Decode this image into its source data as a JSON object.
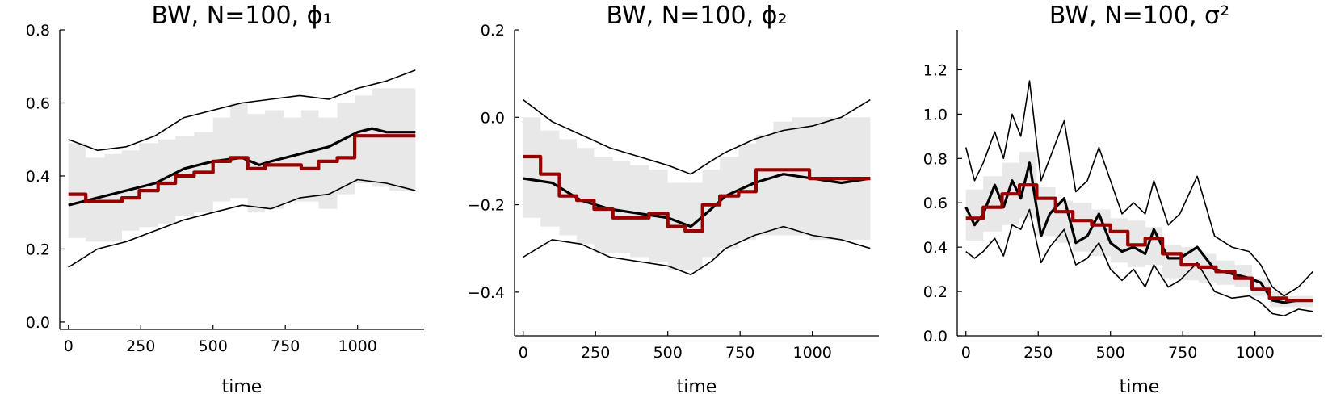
{
  "chart_data": [
    {
      "type": "line",
      "title": "BW, N=100, ϕ₁",
      "xlabel": "time",
      "ylabel": "",
      "xlim": [
        -30,
        1230
      ],
      "ylim": [
        -0.02,
        0.8
      ],
      "xticks": [
        0,
        250,
        500,
        750,
        1000
      ],
      "xtick_labels": [
        "0",
        "250",
        "500",
        "750",
        "1000"
      ],
      "yticks": [
        0.0,
        0.2,
        0.4,
        0.6,
        0.8
      ],
      "ytick_labels": [
        "0.0",
        "0.2",
        "0.4",
        "0.6",
        "0.8"
      ],
      "grid": false,
      "series": [
        {
          "role": "band",
          "color": "#e8e8e8",
          "x": [
            0,
            60,
            60,
            125,
            125,
            185,
            185,
            245,
            245,
            310,
            310,
            370,
            370,
            435,
            435,
            500,
            500,
            560,
            560,
            620,
            620,
            680,
            680,
            745,
            745,
            805,
            805,
            865,
            865,
            930,
            930,
            990,
            990,
            1050,
            1050,
            1110,
            1110,
            1200
          ],
          "lower": [
            0.23,
            0.23,
            0.22,
            0.22,
            0.22,
            0.22,
            0.25,
            0.25,
            0.26,
            0.26,
            0.27,
            0.27,
            0.29,
            0.29,
            0.3,
            0.3,
            0.33,
            0.33,
            0.34,
            0.34,
            0.3,
            0.3,
            0.31,
            0.31,
            0.33,
            0.33,
            0.33,
            0.33,
            0.31,
            0.31,
            0.35,
            0.35,
            0.38,
            0.38,
            0.37,
            0.37,
            0.36,
            0.36
          ],
          "upper": [
            0.49,
            0.49,
            0.45,
            0.45,
            0.46,
            0.46,
            0.47,
            0.47,
            0.49,
            0.49,
            0.5,
            0.5,
            0.51,
            0.51,
            0.52,
            0.52,
            0.56,
            0.56,
            0.6,
            0.6,
            0.57,
            0.57,
            0.58,
            0.58,
            0.56,
            0.56,
            0.58,
            0.58,
            0.56,
            0.56,
            0.6,
            0.6,
            0.62,
            0.62,
            0.64,
            0.64,
            0.64,
            0.64
          ]
        },
        {
          "role": "upper_bound",
          "color": "#000000",
          "x": [
            0,
            100,
            200,
            300,
            400,
            500,
            600,
            700,
            800,
            900,
            1000,
            1100,
            1200
          ],
          "y": [
            0.5,
            0.47,
            0.48,
            0.51,
            0.56,
            0.58,
            0.6,
            0.61,
            0.62,
            0.61,
            0.64,
            0.66,
            0.69
          ]
        },
        {
          "role": "lower_bound",
          "color": "#000000",
          "x": [
            0,
            100,
            200,
            300,
            400,
            500,
            600,
            700,
            800,
            900,
            1000,
            1100,
            1200
          ],
          "y": [
            0.15,
            0.2,
            0.22,
            0.25,
            0.28,
            0.3,
            0.32,
            0.31,
            0.34,
            0.35,
            0.39,
            0.38,
            0.36
          ]
        },
        {
          "role": "mean",
          "color": "#000000",
          "x": [
            0,
            100,
            200,
            300,
            400,
            500,
            600,
            660,
            700,
            800,
            900,
            1000,
            1050,
            1100,
            1200
          ],
          "y": [
            0.32,
            0.34,
            0.36,
            0.38,
            0.42,
            0.44,
            0.45,
            0.43,
            0.44,
            0.46,
            0.48,
            0.52,
            0.53,
            0.52,
            0.52
          ]
        },
        {
          "role": "step",
          "color": "#990000",
          "x": [
            0,
            60,
            60,
            185,
            185,
            245,
            245,
            310,
            310,
            370,
            370,
            435,
            435,
            500,
            500,
            560,
            560,
            620,
            620,
            680,
            680,
            745,
            745,
            805,
            805,
            865,
            865,
            930,
            930,
            990,
            990,
            1050,
            1050,
            1200
          ],
          "y": [
            0.35,
            0.35,
            0.33,
            0.33,
            0.34,
            0.34,
            0.36,
            0.36,
            0.38,
            0.38,
            0.4,
            0.4,
            0.41,
            0.41,
            0.44,
            0.44,
            0.45,
            0.45,
            0.42,
            0.42,
            0.43,
            0.43,
            0.43,
            0.43,
            0.42,
            0.42,
            0.44,
            0.44,
            0.45,
            0.45,
            0.51,
            0.51,
            0.51,
            0.51
          ]
        }
      ]
    },
    {
      "type": "line",
      "title": "BW, N=100, ϕ₂",
      "xlabel": "time",
      "ylabel": "",
      "xlim": [
        -30,
        1230
      ],
      "ylim": [
        -0.5,
        0.2
      ],
      "xticks": [
        0,
        250,
        500,
        750,
        1000
      ],
      "xtick_labels": [
        "0",
        "250",
        "500",
        "750",
        "1000"
      ],
      "yticks": [
        -0.4,
        -0.2,
        0.0,
        0.2
      ],
      "ytick_labels": [
        "−0.4",
        "−0.2",
        "0.0",
        "0.2"
      ],
      "grid": false,
      "series": [
        {
          "role": "band",
          "color": "#e8e8e8",
          "x": [
            0,
            60,
            60,
            125,
            125,
            185,
            185,
            245,
            245,
            310,
            310,
            370,
            370,
            435,
            435,
            500,
            500,
            560,
            560,
            620,
            620,
            680,
            680,
            745,
            745,
            805,
            805,
            865,
            865,
            930,
            930,
            990,
            990,
            1050,
            1050,
            1110,
            1110,
            1200
          ],
          "lower": [
            -0.23,
            -0.23,
            -0.25,
            -0.25,
            -0.27,
            -0.27,
            -0.29,
            -0.29,
            -0.31,
            -0.31,
            -0.31,
            -0.31,
            -0.32,
            -0.32,
            -0.33,
            -0.33,
            -0.35,
            -0.35,
            -0.35,
            -0.35,
            -0.32,
            -0.32,
            -0.3,
            -0.3,
            -0.28,
            -0.28,
            -0.27,
            -0.27,
            -0.27,
            -0.27,
            -0.27,
            -0.27,
            -0.28,
            -0.28,
            -0.28,
            -0.28,
            -0.28,
            -0.28
          ],
          "upper": [
            0.0,
            0.0,
            -0.03,
            -0.03,
            -0.05,
            -0.05,
            -0.07,
            -0.07,
            -0.09,
            -0.09,
            -0.1,
            -0.1,
            -0.11,
            -0.11,
            -0.12,
            -0.12,
            -0.15,
            -0.15,
            -0.15,
            -0.15,
            -0.12,
            -0.12,
            -0.09,
            -0.09,
            -0.06,
            -0.06,
            -0.04,
            -0.04,
            -0.01,
            -0.01,
            0.0,
            0.0,
            0.0,
            0.0,
            0.0,
            0.0,
            0.0,
            0.0
          ]
        },
        {
          "role": "upper_bound",
          "color": "#000000",
          "x": [
            0,
            100,
            200,
            300,
            400,
            500,
            580,
            650,
            700,
            800,
            900,
            1000,
            1100,
            1200
          ],
          "y": [
            0.04,
            -0.01,
            -0.04,
            -0.07,
            -0.09,
            -0.11,
            -0.13,
            -0.1,
            -0.08,
            -0.05,
            -0.03,
            -0.02,
            0.0,
            0.04
          ]
        },
        {
          "role": "lower_bound",
          "color": "#000000",
          "x": [
            0,
            100,
            200,
            300,
            400,
            500,
            580,
            650,
            700,
            800,
            900,
            1000,
            1100,
            1200
          ],
          "y": [
            -0.32,
            -0.28,
            -0.29,
            -0.32,
            -0.33,
            -0.34,
            -0.36,
            -0.33,
            -0.3,
            -0.27,
            -0.25,
            -0.27,
            -0.28,
            -0.3
          ]
        },
        {
          "role": "mean",
          "color": "#000000",
          "x": [
            0,
            100,
            200,
            300,
            400,
            500,
            580,
            650,
            700,
            800,
            900,
            1000,
            1100,
            1200
          ],
          "y": [
            -0.14,
            -0.15,
            -0.19,
            -0.21,
            -0.22,
            -0.23,
            -0.25,
            -0.21,
            -0.18,
            -0.15,
            -0.13,
            -0.14,
            -0.15,
            -0.14
          ]
        },
        {
          "role": "step",
          "color": "#990000",
          "x": [
            0,
            60,
            60,
            125,
            125,
            185,
            185,
            245,
            245,
            310,
            310,
            370,
            370,
            435,
            435,
            500,
            500,
            560,
            560,
            620,
            620,
            680,
            680,
            745,
            745,
            805,
            805,
            865,
            865,
            990,
            990,
            1200
          ],
          "y": [
            -0.09,
            -0.09,
            -0.13,
            -0.13,
            -0.18,
            -0.18,
            -0.19,
            -0.19,
            -0.21,
            -0.21,
            -0.23,
            -0.23,
            -0.23,
            -0.23,
            -0.22,
            -0.22,
            -0.25,
            -0.25,
            -0.26,
            -0.26,
            -0.2,
            -0.2,
            -0.18,
            -0.18,
            -0.17,
            -0.17,
            -0.12,
            -0.12,
            -0.12,
            -0.12,
            -0.14,
            -0.14
          ]
        }
      ]
    },
    {
      "type": "line",
      "title": "BW, N=100, σ²",
      "xlabel": "time",
      "ylabel": "",
      "xlim": [
        -30,
        1230
      ],
      "ylim": [
        0.0,
        1.38
      ],
      "xticks": [
        0,
        250,
        500,
        750,
        1000
      ],
      "xtick_labels": [
        "0",
        "250",
        "500",
        "750",
        "1000"
      ],
      "yticks": [
        0.0,
        0.2,
        0.4,
        0.6,
        0.8,
        1.0,
        1.2
      ],
      "ytick_labels": [
        "0.0",
        "0.2",
        "0.4",
        "0.6",
        "0.8",
        "1.0",
        "1.2"
      ],
      "grid": false,
      "series": [
        {
          "role": "band",
          "color": "#e8e8e8",
          "x": [
            0,
            60,
            60,
            125,
            125,
            185,
            185,
            245,
            245,
            310,
            310,
            370,
            370,
            435,
            435,
            500,
            500,
            560,
            560,
            620,
            620,
            680,
            680,
            745,
            745,
            805,
            805,
            865,
            865,
            930,
            930,
            990,
            990,
            1050,
            1050,
            1110,
            1110,
            1200
          ],
          "lower": [
            0.43,
            0.43,
            0.47,
            0.47,
            0.5,
            0.5,
            0.53,
            0.53,
            0.45,
            0.45,
            0.42,
            0.42,
            0.38,
            0.38,
            0.36,
            0.36,
            0.33,
            0.33,
            0.31,
            0.31,
            0.32,
            0.32,
            0.26,
            0.26,
            0.25,
            0.25,
            0.24,
            0.24,
            0.23,
            0.23,
            0.22,
            0.22,
            0.18,
            0.18,
            0.13,
            0.13,
            0.13,
            0.13
          ],
          "upper": [
            0.66,
            0.66,
            0.72,
            0.72,
            0.78,
            0.78,
            0.83,
            0.83,
            0.67,
            0.67,
            0.61,
            0.61,
            0.6,
            0.6,
            0.57,
            0.57,
            0.53,
            0.53,
            0.52,
            0.52,
            0.49,
            0.49,
            0.41,
            0.41,
            0.4,
            0.4,
            0.37,
            0.37,
            0.34,
            0.34,
            0.32,
            0.32,
            0.26,
            0.26,
            0.2,
            0.2,
            0.18,
            0.18
          ]
        },
        {
          "role": "upper_bound",
          "color": "#000000",
          "x": [
            0,
            30,
            60,
            100,
            130,
            160,
            190,
            220,
            260,
            290,
            340,
            380,
            420,
            460,
            500,
            540,
            580,
            620,
            650,
            700,
            740,
            800,
            860,
            920,
            980,
            1020,
            1060,
            1100,
            1150,
            1200
          ],
          "y": [
            0.85,
            0.7,
            0.78,
            0.92,
            0.8,
            1.0,
            0.9,
            1.15,
            0.7,
            0.8,
            0.97,
            0.65,
            0.7,
            0.85,
            0.7,
            0.55,
            0.6,
            0.55,
            0.7,
            0.5,
            0.55,
            0.72,
            0.45,
            0.4,
            0.38,
            0.32,
            0.22,
            0.18,
            0.22,
            0.29
          ]
        },
        {
          "role": "lower_bound",
          "color": "#000000",
          "x": [
            0,
            30,
            60,
            100,
            130,
            160,
            190,
            220,
            260,
            290,
            340,
            380,
            420,
            460,
            500,
            540,
            580,
            620,
            650,
            700,
            740,
            800,
            860,
            920,
            980,
            1020,
            1060,
            1100,
            1150,
            1200
          ],
          "y": [
            0.38,
            0.35,
            0.38,
            0.44,
            0.36,
            0.5,
            0.48,
            0.57,
            0.33,
            0.4,
            0.48,
            0.32,
            0.35,
            0.42,
            0.3,
            0.25,
            0.3,
            0.22,
            0.32,
            0.22,
            0.25,
            0.33,
            0.2,
            0.17,
            0.18,
            0.15,
            0.1,
            0.09,
            0.12,
            0.11
          ]
        },
        {
          "role": "mean",
          "color": "#000000",
          "x": [
            0,
            30,
            60,
            100,
            130,
            160,
            190,
            220,
            260,
            290,
            340,
            380,
            420,
            460,
            500,
            540,
            580,
            620,
            650,
            700,
            740,
            800,
            860,
            920,
            980,
            1020,
            1060,
            1100,
            1150,
            1200
          ],
          "y": [
            0.58,
            0.5,
            0.55,
            0.68,
            0.58,
            0.7,
            0.62,
            0.78,
            0.45,
            0.55,
            0.62,
            0.42,
            0.45,
            0.55,
            0.42,
            0.38,
            0.4,
            0.37,
            0.48,
            0.35,
            0.35,
            0.4,
            0.3,
            0.28,
            0.26,
            0.24,
            0.16,
            0.15,
            0.16,
            0.16
          ]
        },
        {
          "role": "step",
          "color": "#990000",
          "x": [
            0,
            60,
            60,
            125,
            125,
            185,
            185,
            245,
            245,
            310,
            310,
            370,
            370,
            435,
            435,
            500,
            500,
            560,
            560,
            620,
            620,
            680,
            680,
            745,
            745,
            805,
            805,
            865,
            865,
            930,
            930,
            990,
            990,
            1050,
            1050,
            1110,
            1110,
            1200
          ],
          "y": [
            0.53,
            0.53,
            0.58,
            0.58,
            0.64,
            0.64,
            0.68,
            0.68,
            0.62,
            0.62,
            0.56,
            0.56,
            0.52,
            0.52,
            0.5,
            0.5,
            0.47,
            0.47,
            0.41,
            0.41,
            0.44,
            0.44,
            0.37,
            0.37,
            0.32,
            0.32,
            0.31,
            0.31,
            0.29,
            0.29,
            0.26,
            0.26,
            0.21,
            0.21,
            0.17,
            0.17,
            0.16,
            0.16
          ]
        }
      ]
    }
  ]
}
